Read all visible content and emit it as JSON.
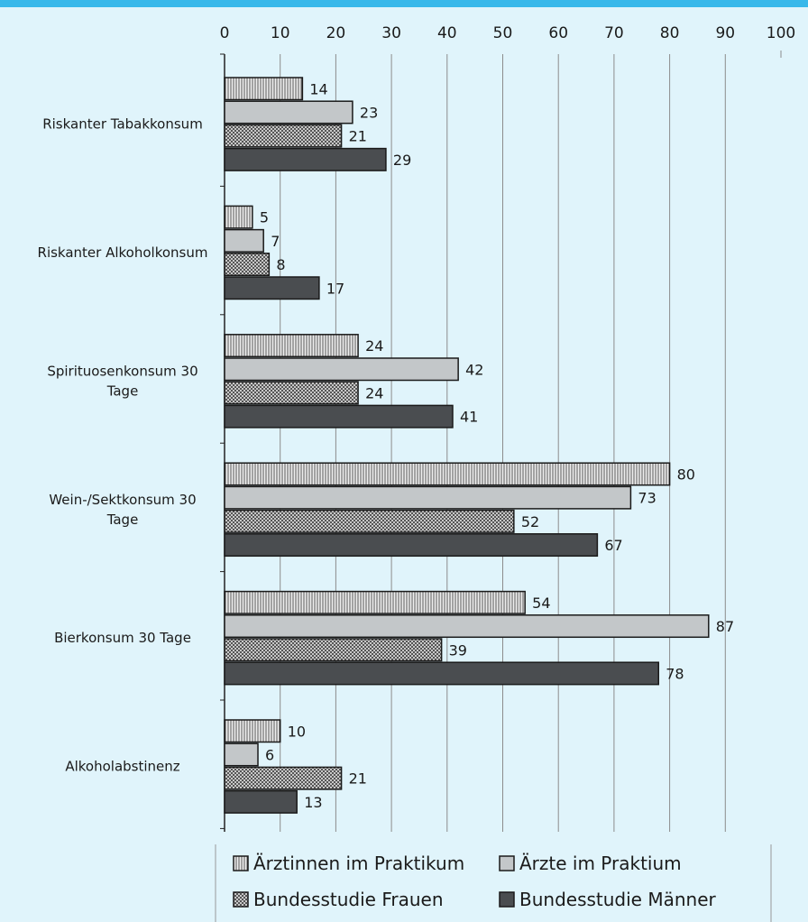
{
  "chart_data": {
    "type": "bar",
    "orientation": "horizontal",
    "categories": [
      "Riskanter Tabakkonsum",
      "Riskanter Alkoholkonsum",
      "Spirituosenkonsum 30 Tage",
      "Wein-/Sektkonsum 30 Tage",
      "Bierkonsum 30 Tage",
      "Alkoholabstinenz"
    ],
    "series": [
      {
        "name": "Ärztinnen im Praktikum",
        "values": [
          14,
          5,
          24,
          80,
          54,
          10
        ],
        "color": "#d4d4d4",
        "pattern": "vertical-lines"
      },
      {
        "name": "Ärzte im Praktium",
        "values": [
          23,
          7,
          42,
          73,
          87,
          6
        ],
        "color": "#c3c7c9",
        "pattern": "solid"
      },
      {
        "name": "Bundesstudie Frauen",
        "values": [
          21,
          8,
          24,
          52,
          39,
          21
        ],
        "color": "#8a8a8a",
        "pattern": "checker"
      },
      {
        "name": "Bundesstudie Männer",
        "values": [
          29,
          17,
          41,
          67,
          78,
          13
        ],
        "color": "#4a4d50",
        "pattern": "solid"
      }
    ],
    "xlim": [
      0,
      100
    ],
    "xticks": [
      0,
      10,
      20,
      30,
      40,
      50,
      60,
      70,
      80,
      90,
      100
    ],
    "xaxis_position": "top",
    "grid": true,
    "legend_position": "bottom"
  },
  "colors": {
    "background": "#e0f4fb",
    "topbar": "#38b8ea",
    "gridline": "#8c8c8c"
  }
}
